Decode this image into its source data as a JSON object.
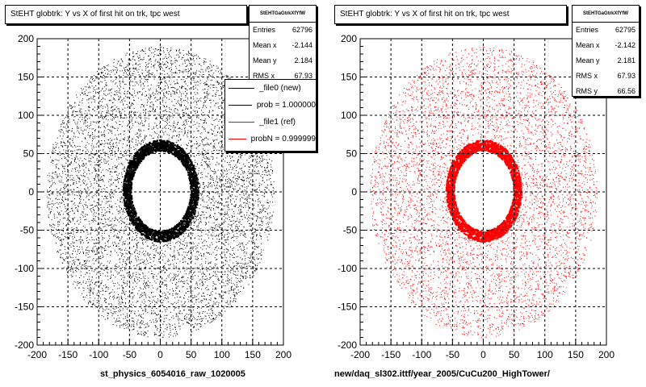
{
  "panels": [
    {
      "title": "StEHT globtrk: Y vs X of first hit on trk, tpc west",
      "stats": {
        "name": "StEHTGaGtrkXfYfW",
        "entries_label": "Entries",
        "entries": "62796",
        "mean_x_label": "Mean x",
        "mean_x": "-2.144",
        "mean_y_label": "Mean y",
        "mean_y": "2.184",
        "rms_x_label": "RMS x",
        "rms_x": "67.93"
      },
      "legend": [
        {
          "label": "_file0 (new)",
          "color": "#000000"
        },
        {
          "label": "prob = 1.000000",
          "color": "#000000"
        },
        {
          "label": "_file1 (ref)",
          "color": "#ff0000"
        },
        {
          "label": "probN = 0.999999",
          "color": "#ff0000"
        }
      ],
      "xlabel": "st_physics_6054016_raw_1020005",
      "color": "#000000"
    },
    {
      "title": "StEHT globtrk: Y vs X of first hit on trk, tpc west",
      "stats": {
        "name": "StEHTGaGtrkXfYfW",
        "entries_label": "Entries",
        "entries": "62795",
        "mean_x_label": "Mean x",
        "mean_x": "-2.142",
        "mean_y_label": "Mean y",
        "mean_y": "2.181",
        "rms_x_label": "RMS x",
        "rms_x": "67.93",
        "rms_y_label": "RMS y",
        "rms_y": "66.56"
      },
      "xlabel": "new/daq_sl302.ittf/year_2005/CuCu200_HighTower/",
      "color": "#ff0000"
    }
  ],
  "chart_data": [
    {
      "type": "scatter",
      "title": "StEHT globtrk: Y vs X of first hit on trk, tpc west",
      "xlabel": "st_physics_6054016_raw_1020005",
      "xlim": [
        -200,
        200
      ],
      "ylim": [
        -200,
        200
      ],
      "xticks": [
        -200,
        -150,
        -100,
        -50,
        0,
        50,
        100,
        150,
        200
      ],
      "yticks": [
        -200,
        -150,
        -100,
        -50,
        0,
        50,
        100,
        150,
        200
      ],
      "grid": true,
      "series": [
        {
          "name": "_file0 (new)",
          "color": "#000000",
          "entries": 62796,
          "mean_x": -2.144,
          "mean_y": 2.184,
          "rms_x": 67.93
        }
      ],
      "distribution": {
        "shape": "filled-ellipse-with-hole",
        "outer_rx": 185,
        "outer_ry": 190,
        "hole_rx": 48,
        "hole_ry": 52,
        "hole_center": [
          0,
          2
        ]
      }
    },
    {
      "type": "scatter",
      "title": "StEHT globtrk: Y vs X of first hit on trk, tpc west",
      "xlabel": "new/daq_sl302.ittf/year_2005/CuCu200_HighTower/",
      "xlim": [
        -200,
        200
      ],
      "ylim": [
        -200,
        200
      ],
      "xticks": [
        -200,
        -150,
        -100,
        -50,
        0,
        50,
        100,
        150,
        200
      ],
      "yticks": [
        -200,
        -150,
        -100,
        -50,
        0,
        50,
        100,
        150,
        200
      ],
      "grid": true,
      "series": [
        {
          "name": "_file1 (ref)",
          "color": "#ff0000",
          "entries": 62795,
          "mean_x": -2.142,
          "mean_y": 2.181,
          "rms_x": 67.93,
          "rms_y": 66.56
        }
      ],
      "distribution": {
        "shape": "filled-ellipse-with-hole",
        "outer_rx": 185,
        "outer_ry": 190,
        "hole_rx": 48,
        "hole_ry": 52,
        "hole_center": [
          0,
          2
        ]
      }
    }
  ]
}
